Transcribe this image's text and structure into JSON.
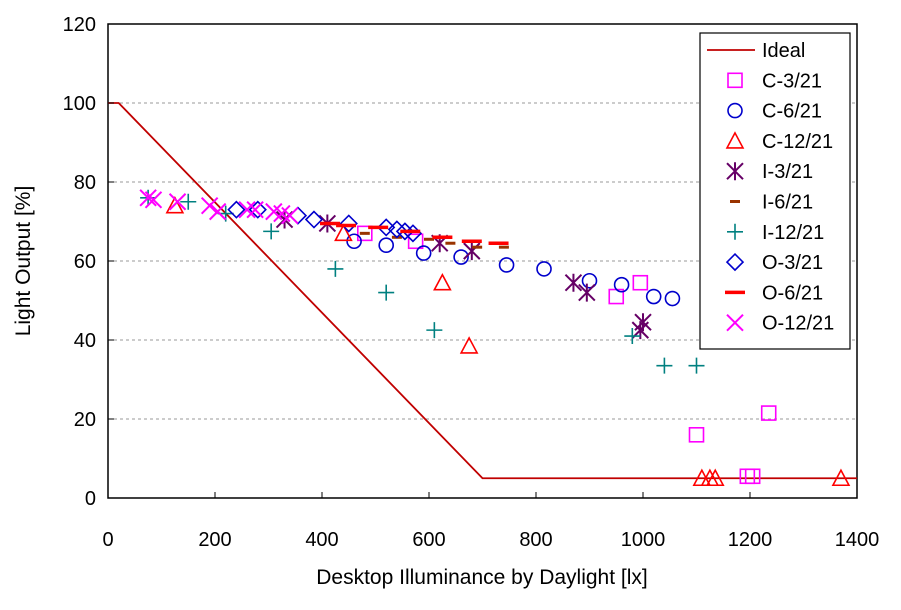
{
  "chart_data": {
    "type": "scatter",
    "title": "",
    "xlabel": "Desktop Illuminance by Daylight [lx]",
    "ylabel": "Light Output [%]",
    "xlim": [
      0,
      1400
    ],
    "ylim": [
      0,
      120
    ],
    "xticks": [
      0,
      200,
      400,
      600,
      800,
      1000,
      1200,
      1400
    ],
    "yticks": [
      0,
      20,
      40,
      60,
      80,
      100,
      120
    ],
    "grid": "horizontal dashed",
    "legend": "top-right",
    "series": [
      {
        "name": "Ideal",
        "kind": "line",
        "marker": "line",
        "color": "#c00000",
        "x": [
          0,
          20,
          700,
          1400
        ],
        "y": [
          100,
          100,
          5,
          5
        ]
      },
      {
        "name": "C-3/21",
        "marker": "square",
        "color": "#ff00ff",
        "x": [
          480,
          575,
          950,
          995,
          1100,
          1195,
          1205,
          1235
        ],
        "y": [
          67,
          65,
          51,
          54.5,
          16,
          5.5,
          5.5,
          21.5
        ]
      },
      {
        "name": "C-6/21",
        "marker": "circle",
        "color": "#0000cc",
        "x": [
          460,
          520,
          590,
          660,
          745,
          815,
          900,
          960,
          1020,
          1055
        ],
        "y": [
          65,
          64,
          62,
          61,
          59,
          58,
          55,
          54,
          51,
          50.5
        ]
      },
      {
        "name": "C-12/21",
        "marker": "triangle",
        "color": "#ff0000",
        "x": [
          125,
          440,
          625,
          675,
          1110,
          1125,
          1135,
          1370
        ],
        "y": [
          74,
          67,
          54.5,
          38.5,
          5,
          5,
          5,
          5
        ]
      },
      {
        "name": "I-3/21",
        "marker": "asterisk",
        "color": "#660066",
        "x": [
          330,
          410,
          620,
          680,
          870,
          895,
          995,
          1000
        ],
        "y": [
          70.5,
          69.5,
          64.5,
          62.5,
          54.5,
          52,
          42.5,
          44.5
        ]
      },
      {
        "name": "I-6/21",
        "marker": "dash",
        "color": "#993300",
        "x": [
          480,
          540,
          600,
          640,
          690,
          740
        ],
        "y": [
          67,
          66,
          65.5,
          64.5,
          63.5,
          63.5
        ]
      },
      {
        "name": "I-12/21",
        "marker": "plus",
        "color": "#008080",
        "x": [
          75,
          150,
          220,
          305,
          425,
          520,
          610,
          980,
          1040,
          1100
        ],
        "y": [
          76,
          75,
          72,
          67.5,
          58,
          52,
          42.5,
          41,
          33.5,
          33.5
        ]
      },
      {
        "name": "O-3/21",
        "marker": "diamond",
        "color": "#0000cc",
        "x": [
          240,
          280,
          355,
          385,
          450,
          520,
          540,
          555,
          570
        ],
        "y": [
          73,
          73,
          71.5,
          70.5,
          69.5,
          68.5,
          68,
          67.5,
          67
        ]
      },
      {
        "name": "O-6/21",
        "marker": "bar",
        "color": "#ff0000",
        "x": [
          415,
          445,
          505,
          565,
          625,
          680,
          730
        ],
        "y": [
          69.5,
          69,
          68.5,
          67.5,
          66,
          65,
          64.5
        ]
      },
      {
        "name": "O-12/21",
        "marker": "x",
        "color": "#ff00ff",
        "x": [
          75,
          85,
          130,
          190,
          205,
          260,
          275,
          310,
          325,
          340
        ],
        "y": [
          76,
          75.5,
          75,
          74,
          72.5,
          73,
          73,
          72.5,
          72,
          71.5
        ]
      }
    ]
  }
}
